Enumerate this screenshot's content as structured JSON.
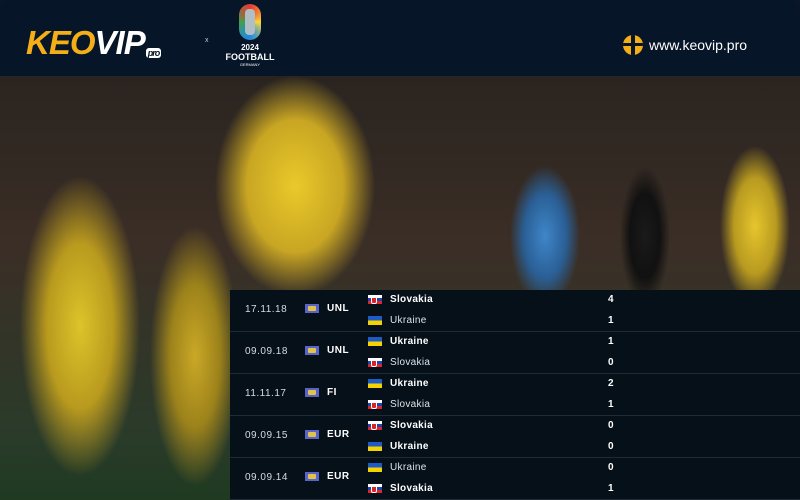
{
  "header": {
    "logo": "KEOVIP",
    "logo_suffix": "pro",
    "separator": "x",
    "event_year": "2024",
    "event_name": "FOOTBALL",
    "event_country": "GERMANY",
    "website": "www.keovip.pro",
    "accent": "#f3ae18"
  },
  "matches": [
    {
      "date": "17.11.18",
      "competition": "UNL",
      "home": {
        "team": "Slovakia",
        "score": "4"
      },
      "away": {
        "team": "Ukraine",
        "score": "1"
      }
    },
    {
      "date": "09.09.18",
      "competition": "UNL",
      "home": {
        "team": "Ukraine",
        "score": "1"
      },
      "away": {
        "team": "Slovakia",
        "score": "0"
      }
    },
    {
      "date": "11.11.17",
      "competition": "FI",
      "home": {
        "team": "Ukraine",
        "score": "2"
      },
      "away": {
        "team": "Slovakia",
        "score": "1"
      }
    },
    {
      "date": "09.09.15",
      "competition": "EUR",
      "home": {
        "team": "Slovakia",
        "score": "0"
      },
      "away": {
        "team": "Ukraine",
        "score": "0"
      }
    },
    {
      "date": "09.09.14",
      "competition": "EUR",
      "home": {
        "team": "Ukraine",
        "score": "0"
      },
      "away": {
        "team": "Slovakia",
        "score": "1"
      }
    }
  ]
}
